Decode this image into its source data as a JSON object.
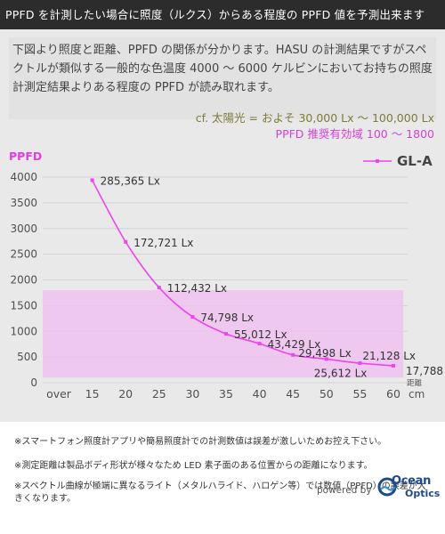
{
  "header": {
    "title": "PPFD を計測したい場合に照度（ルクス）からある程度の PPFD 値を予測出来ます"
  },
  "intro": {
    "text": "下図より照度と距離、PPFD の関係が分かります。HASU の計測結果ですがスペクトルが類似する一般的な色温度 4000 ～ 6000 ケルビンにおいてお持ちの照度計測定結果よりある程度の PPFD が読み取れます。"
  },
  "notes": {
    "sunlight": "cf. 太陽光 = およそ 30,000 Lx ～ 100,000 Lx",
    "recommended": "PPFD 推奨有効域 100 ～ 1800"
  },
  "colors": {
    "series": "#ee44ee",
    "band": "#efc2ef",
    "grid": "#d2d2d2",
    "footer_text": "#333333",
    "logo": "#1e4a8a"
  },
  "chart_data": {
    "type": "line",
    "ylabel": "PPFD",
    "xlabel": "距離",
    "x_unit": "cm",
    "ylim": [
      0,
      4000
    ],
    "y_ticks": [
      "0",
      "500",
      "1000",
      "1500",
      "2000",
      "2500",
      "3000",
      "3500",
      "4000"
    ],
    "x_categories": [
      "over",
      "15",
      "20",
      "25",
      "30",
      "35",
      "40",
      "45",
      "50",
      "55",
      "60"
    ],
    "grid": true,
    "legend_position": "top-right",
    "recommended_band": [
      100,
      1800
    ],
    "series": [
      {
        "name": "GL-A",
        "points": [
          {
            "x": 15,
            "y": 3940,
            "label": "285,365 Lx"
          },
          {
            "x": 20,
            "y": 2740,
            "label": "172,721 Lx"
          },
          {
            "x": 25,
            "y": 1850,
            "label": "112,432 Lx"
          },
          {
            "x": 30,
            "y": 1280,
            "label": "74,798 Lx"
          },
          {
            "x": 35,
            "y": 950,
            "label": "55,012 Lx"
          },
          {
            "x": 40,
            "y": 760,
            "label": "43,429 Lx"
          },
          {
            "x": 45,
            "y": 540,
            "label": "29,498 Lx"
          },
          {
            "x": 50,
            "y": 460,
            "label": "25,612 Lx"
          },
          {
            "x": 55,
            "y": 380,
            "label": "21,128 Lx"
          },
          {
            "x": 60,
            "y": 330,
            "label": "17,788 Lx"
          }
        ]
      }
    ]
  },
  "footnotes": [
    "※スマートフォン照度計アプリや簡易照度計での計測数値は誤差が激しいためお控え下さい。",
    "※測定距離は製品ボディ形状が様々なため LED 素子面のある位置からの距離になります。",
    "※スペクトル曲線が極端に異なるライト（メタルハライド、ハロゲン等）では数値（PPFD）の誤差が大きくなります。"
  ],
  "branding": {
    "powered": "powered by",
    "logo_line1": "Ocean",
    "logo_line2": "Optics",
    "logo_icon": "ocean-optics-logo-icon"
  }
}
